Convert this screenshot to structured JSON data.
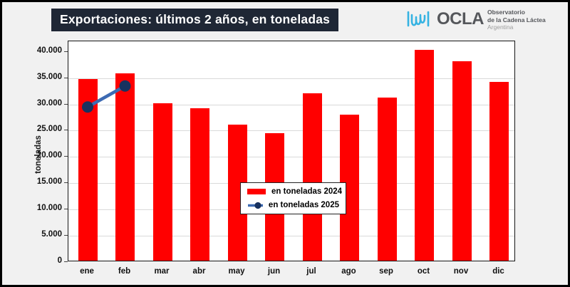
{
  "title": "Exportaciones: últimos 2 años, en toneladas",
  "logo": {
    "brand": "OCLA",
    "line1": "Observatorio",
    "line2": "de la Cadena Láctea",
    "line3": "Argentina"
  },
  "colors": {
    "bar": "#ff0000",
    "line": "#3d6bb3",
    "dot": "#18325f",
    "title_bg": "#1f2735",
    "logo_blue": "#36b3e2"
  },
  "chart_data": {
    "type": "bar",
    "title": "Exportaciones: últimos 2 años, en toneladas",
    "xlabel": "",
    "ylabel": "toneladas",
    "categories": [
      "ene",
      "feb",
      "mar",
      "abr",
      "may",
      "jun",
      "jul",
      "ago",
      "sep",
      "oct",
      "nov",
      "dic"
    ],
    "series": [
      {
        "name": "en toneladas 2024",
        "type": "bar",
        "color": "#ff0000",
        "values": [
          34500,
          35600,
          29900,
          29000,
          25900,
          24200,
          31800,
          27800,
          31000,
          40100,
          37900,
          34000
        ]
      },
      {
        "name": "en toneladas 2025",
        "type": "line",
        "color": "#3d6bb3",
        "values": [
          29500,
          33500,
          null,
          null,
          null,
          null,
          null,
          null,
          null,
          null,
          null,
          null
        ]
      }
    ],
    "y_axis": {
      "min": 0,
      "max": 42000,
      "tick_interval": 5000,
      "tick_labels": [
        "0",
        "5.000",
        "10.000",
        "15.000",
        "20.000",
        "25.000",
        "30.000",
        "35.000",
        "40.000"
      ]
    },
    "grid": true,
    "legend_position": "center"
  }
}
